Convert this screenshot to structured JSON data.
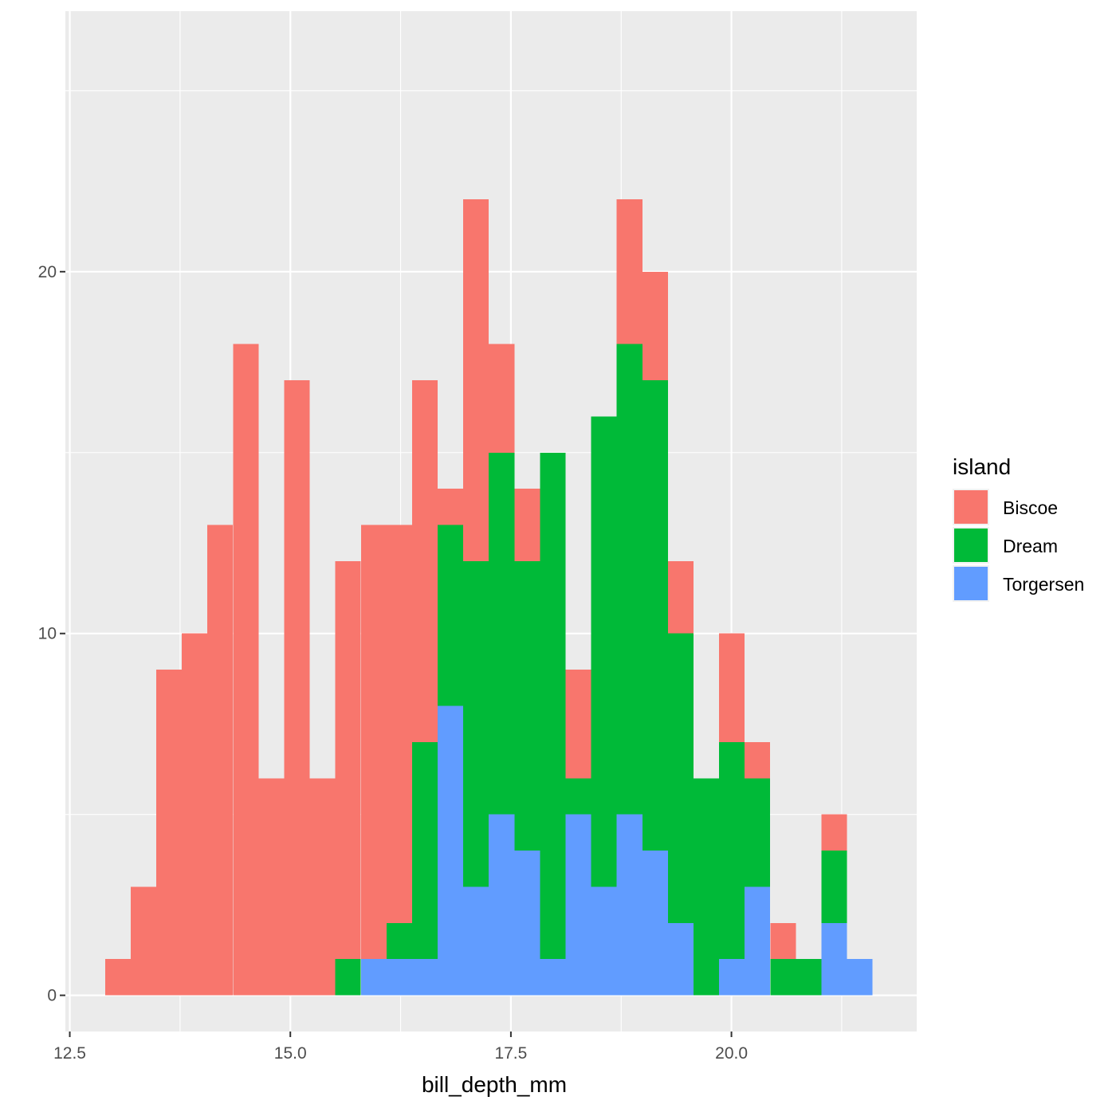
{
  "chart_data": {
    "type": "bar",
    "stacked": true,
    "histogram": true,
    "xlabel": "bill_depth_mm",
    "ylabel": "",
    "title": "",
    "xlim": [
      12.45,
      22.1
    ],
    "ylim": [
      -1.0,
      27.2
    ],
    "x_ticks": [
      12.5,
      15.0,
      17.5,
      20.0
    ],
    "x_tick_labels": [
      "12.5",
      "15.0",
      "17.5",
      "20.0"
    ],
    "y_ticks": [
      0,
      10,
      20
    ],
    "y_tick_labels": [
      "0",
      "10",
      "20"
    ],
    "bin_width": 0.2897,
    "bin_starts": [
      12.9,
      13.19,
      13.48,
      13.77,
      14.06,
      14.35,
      14.64,
      14.93,
      15.22,
      15.51,
      15.8,
      16.09,
      16.38,
      16.67,
      16.96,
      17.25,
      17.54,
      17.83,
      18.12,
      18.41,
      18.7,
      18.99,
      19.28,
      19.57,
      19.86,
      20.15,
      20.44,
      20.73,
      21.02,
      21.31
    ],
    "grid": true,
    "legend_position": "right",
    "legend_title": "island",
    "series": [
      {
        "name": "Biscoe",
        "color": "#F8766D",
        "values": [
          1,
          3,
          9,
          10,
          13,
          18,
          6,
          17,
          6,
          11,
          12,
          11,
          10,
          1,
          10,
          3,
          2,
          0,
          3,
          0,
          4,
          3,
          2,
          0,
          3,
          1,
          1,
          0,
          1,
          0
        ]
      },
      {
        "name": "Dream",
        "color": "#00BA38",
        "values": [
          0,
          0,
          0,
          0,
          0,
          0,
          0,
          0,
          0,
          1,
          0,
          1,
          6,
          5,
          9,
          10,
          8,
          14,
          1,
          13,
          13,
          13,
          8,
          6,
          6,
          3,
          1,
          1,
          2,
          0
        ]
      },
      {
        "name": "Torgersen",
        "color": "#619CFF",
        "values": [
          0,
          0,
          0,
          0,
          0,
          0,
          0,
          0,
          0,
          0,
          1,
          1,
          1,
          8,
          3,
          5,
          4,
          1,
          5,
          3,
          5,
          4,
          2,
          0,
          1,
          3,
          0,
          0,
          2,
          1
        ]
      }
    ]
  }
}
